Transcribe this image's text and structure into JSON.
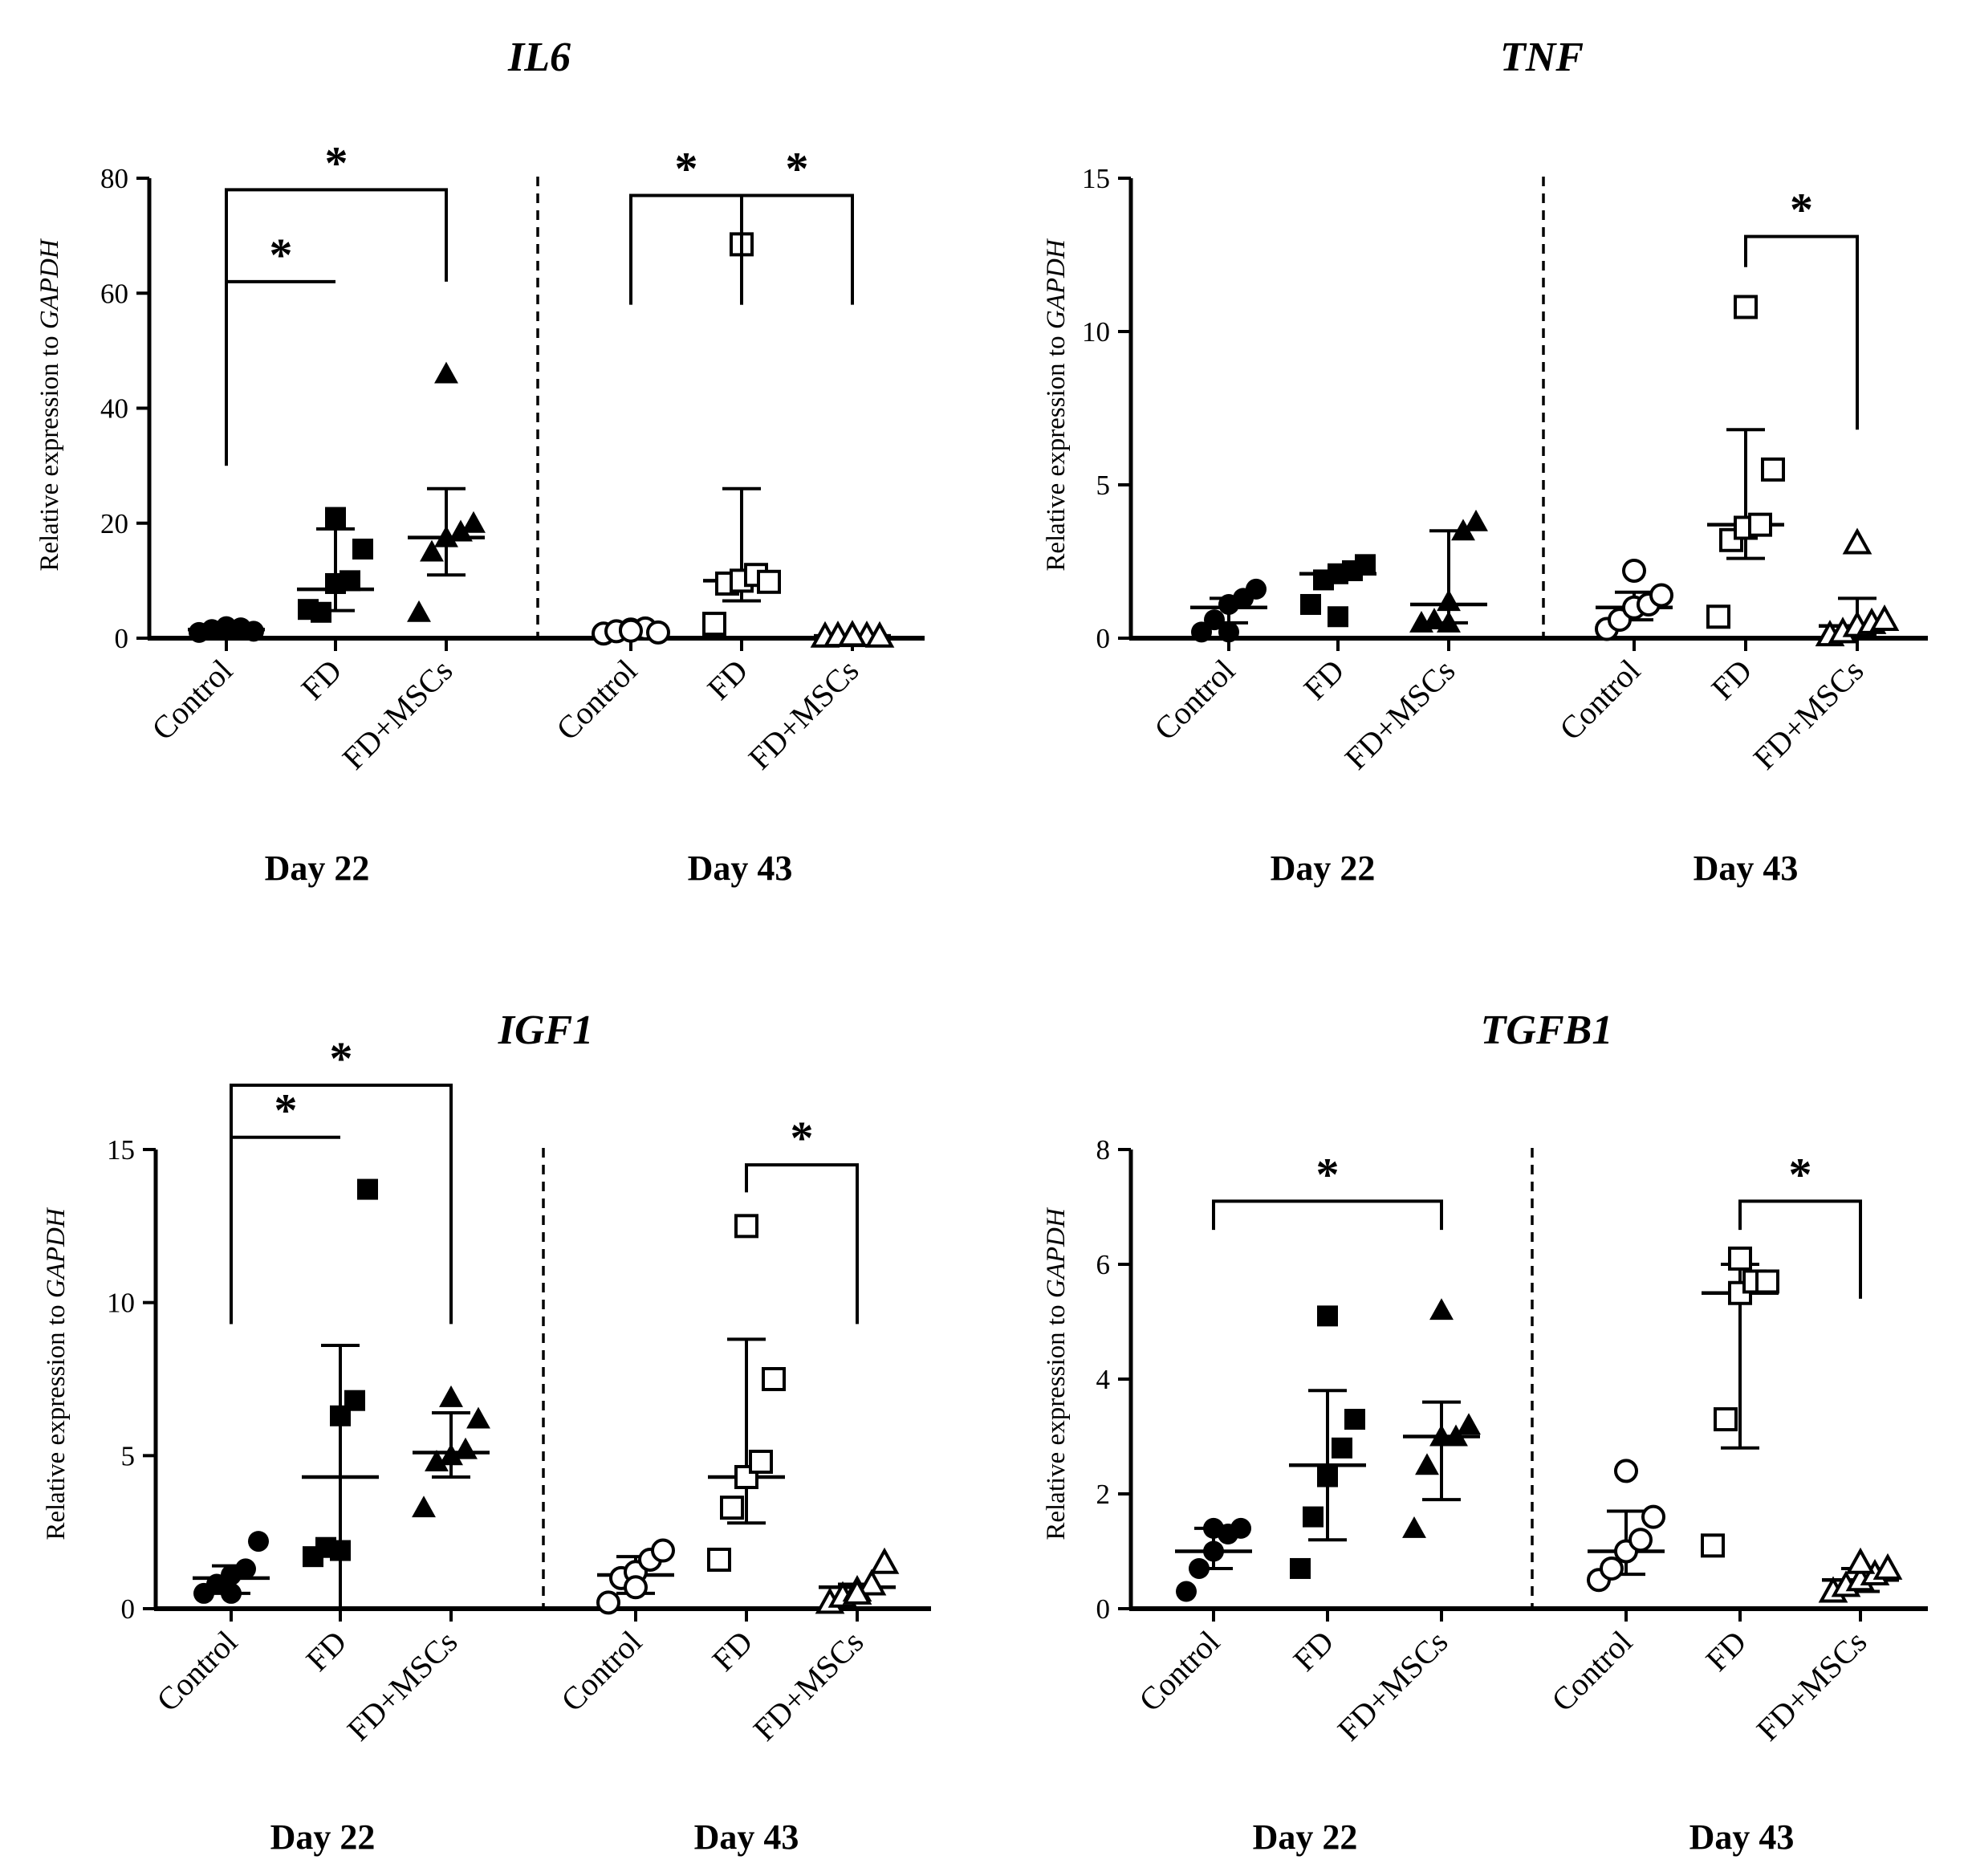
{
  "figure": {
    "ylabel_prefix": "Relative expression to ",
    "ylabel_gene": "GAPDH"
  },
  "chart_data": [
    {
      "type": "scatter",
      "title": "IL6",
      "ylim": [
        0,
        80
      ],
      "yticks": [
        0,
        20,
        40,
        60,
        80
      ],
      "groups": [
        {
          "label": "Day 22",
          "categories": [
            {
              "name": "Control",
              "marker": "circle",
              "filled": true,
              "points": [
                1.0,
                1.5,
                2.0,
                1.8,
                1.2,
                1.4
              ],
              "mean": 1.5,
              "error": [
                0.6,
                2.3
              ]
            },
            {
              "name": "FD",
              "marker": "square",
              "filled": true,
              "points": [
                5.0,
                4.5,
                9.5,
                10.0,
                15.5,
                21.0
              ],
              "mean": 8.5,
              "error": [
                4.8,
                19.0
              ]
            },
            {
              "name": "FD+MSCs",
              "marker": "triangle",
              "filled": true,
              "points": [
                4.5,
                15.0,
                17.5,
                18.5,
                20.0,
                46.0
              ],
              "mean": 17.5,
              "error": [
                11.0,
                26.0
              ]
            }
          ]
        },
        {
          "label": "Day 43",
          "categories": [
            {
              "name": "Control",
              "marker": "circle",
              "filled": false,
              "points": [
                0.8,
                1.2,
                1.5,
                1.7,
                1.0,
                1.3
              ],
              "mean": 1.2,
              "error": [
                0.6,
                1.7
              ]
            },
            {
              "name": "FD",
              "marker": "square",
              "filled": false,
              "points": [
                2.5,
                9.5,
                10.0,
                11.0,
                9.8,
                68.5
              ],
              "mean": 10.0,
              "error": [
                6.5,
                26.0
              ]
            },
            {
              "name": "FD+MSCs",
              "marker": "triangle",
              "filled": false,
              "points": [
                0.3,
                0.4,
                0.5,
                0.4,
                0.3,
                0.5
              ],
              "mean": 0.4,
              "error": [
                0.2,
                0.6
              ]
            }
          ]
        }
      ],
      "significance": [
        {
          "from": [
            0,
            0
          ],
          "to": [
            0,
            1
          ],
          "y": 62,
          "drop": [
            30,
            62
          ],
          "label": "*"
        },
        {
          "from": [
            0,
            0
          ],
          "to": [
            0,
            2
          ],
          "y": 78,
          "drop": [
            30,
            62
          ],
          "label": "*"
        },
        {
          "from": [
            1,
            1
          ],
          "to": [
            1,
            0
          ],
          "y": 77,
          "drop": [
            58,
            58
          ],
          "label": "*"
        },
        {
          "from": [
            1,
            1
          ],
          "to": [
            1,
            2
          ],
          "y": 77,
          "drop": [
            58,
            58
          ],
          "label": "*"
        }
      ]
    },
    {
      "type": "scatter",
      "title": "TNF",
      "ylim": [
        0,
        15
      ],
      "yticks": [
        0,
        5,
        10,
        15
      ],
      "groups": [
        {
          "label": "Day 22",
          "categories": [
            {
              "name": "Control",
              "marker": "circle",
              "filled": true,
              "points": [
                0.2,
                0.6,
                1.1,
                1.3,
                1.6,
                0.2
              ],
              "mean": 1.0,
              "error": [
                0.5,
                1.3
              ]
            },
            {
              "name": "FD",
              "marker": "square",
              "filled": true,
              "points": [
                1.1,
                1.9,
                2.1,
                2.2,
                2.4,
                0.7
              ],
              "mean": 2.1,
              "error": [
                2.1,
                2.1
              ]
            },
            {
              "name": "FD+MSCs",
              "marker": "triangle",
              "filled": true,
              "points": [
                0.5,
                0.6,
                1.2,
                3.5,
                3.8,
                0.5
              ],
              "mean": 1.1,
              "error": [
                0.5,
                3.5
              ]
            }
          ]
        },
        {
          "label": "Day 43",
          "categories": [
            {
              "name": "Control",
              "marker": "circle",
              "filled": false,
              "points": [
                0.3,
                0.6,
                1.0,
                1.1,
                1.4,
                2.2
              ],
              "mean": 1.0,
              "error": [
                0.6,
                1.5
              ]
            },
            {
              "name": "FD",
              "marker": "square",
              "filled": false,
              "points": [
                0.7,
                3.2,
                3.6,
                3.7,
                5.5,
                10.8
              ],
              "mean": 3.7,
              "error": [
                2.6,
                6.8
              ]
            },
            {
              "name": "FD+MSCs",
              "marker": "triangle",
              "filled": false,
              "points": [
                0.1,
                0.2,
                0.4,
                0.5,
                0.6,
                3.1
              ],
              "mean": 0.4,
              "error": [
                0.1,
                1.3
              ]
            }
          ]
        }
      ],
      "significance": [
        {
          "from": [
            1,
            1
          ],
          "to": [
            1,
            2
          ],
          "y": 13.1,
          "drop": [
            12.1,
            6.8
          ],
          "label": "*"
        }
      ]
    },
    {
      "type": "scatter",
      "title": "IGF1",
      "ylim": [
        0,
        15
      ],
      "yticks": [
        0,
        5,
        10,
        15
      ],
      "groups": [
        {
          "label": "Day 22",
          "categories": [
            {
              "name": "Control",
              "marker": "circle",
              "filled": true,
              "points": [
                0.5,
                0.8,
                1.1,
                1.3,
                2.2,
                0.5
              ],
              "mean": 1.0,
              "error": [
                0.5,
                1.4
              ]
            },
            {
              "name": "FD",
              "marker": "square",
              "filled": true,
              "points": [
                1.7,
                2.0,
                6.3,
                6.8,
                13.7,
                1.9
              ],
              "mean": 4.3,
              "error": [
                0,
                8.6
              ]
            },
            {
              "name": "FD+MSCs",
              "marker": "triangle",
              "filled": true,
              "points": [
                3.3,
                4.8,
                5.0,
                5.2,
                6.2,
                6.9
              ],
              "mean": 5.1,
              "error": [
                4.3,
                6.4
              ]
            }
          ]
        },
        {
          "label": "Day 43",
          "categories": [
            {
              "name": "Control",
              "marker": "circle",
              "filled": false,
              "points": [
                0.2,
                1.0,
                1.2,
                1.6,
                1.9,
                0.7
              ],
              "mean": 1.1,
              "error": [
                0.5,
                1.7
              ]
            },
            {
              "name": "FD",
              "marker": "square",
              "filled": false,
              "points": [
                1.6,
                3.3,
                4.3,
                4.8,
                7.5,
                12.5
              ],
              "mean": 4.3,
              "error": [
                2.8,
                8.8
              ]
            },
            {
              "name": "FD+MSCs",
              "marker": "triangle",
              "filled": false,
              "points": [
                0.2,
                0.4,
                0.6,
                0.8,
                1.5,
                0.5
              ],
              "mean": 0.7,
              "error": [
                0.5,
                0.8
              ]
            }
          ]
        }
      ],
      "significance": [
        {
          "from": [
            0,
            0
          ],
          "to": [
            0,
            1
          ],
          "y": 15.4,
          "drop": [
            9.3,
            15.4
          ],
          "label": "*"
        },
        {
          "from": [
            0,
            0
          ],
          "to": [
            0,
            2
          ],
          "y": 17.1,
          "drop": [
            9.3,
            9.3
          ],
          "label": "*"
        },
        {
          "from": [
            1,
            1
          ],
          "to": [
            1,
            2
          ],
          "y": 14.5,
          "drop": [
            13.6,
            9.3
          ],
          "label": "*"
        }
      ]
    },
    {
      "type": "scatter",
      "title": "TGFB1",
      "ylim": [
        0,
        8
      ],
      "yticks": [
        0,
        2,
        4,
        6,
        8
      ],
      "groups": [
        {
          "label": "Day 22",
          "categories": [
            {
              "name": "Control",
              "marker": "circle",
              "filled": true,
              "points": [
                0.3,
                0.7,
                1.0,
                1.3,
                1.4,
                1.4
              ],
              "mean": 1.0,
              "error": [
                0.7,
                1.4
              ]
            },
            {
              "name": "FD",
              "marker": "square",
              "filled": true,
              "points": [
                0.7,
                1.6,
                2.3,
                2.8,
                3.3,
                5.1
              ],
              "mean": 2.5,
              "error": [
                1.2,
                3.8
              ]
            },
            {
              "name": "FD+MSCs",
              "marker": "triangle",
              "filled": true,
              "points": [
                1.4,
                2.5,
                3.0,
                3.0,
                3.2,
                5.2
              ],
              "mean": 3.0,
              "error": [
                1.9,
                3.6
              ]
            }
          ]
        },
        {
          "label": "Day 43",
          "categories": [
            {
              "name": "Control",
              "marker": "circle",
              "filled": false,
              "points": [
                0.5,
                0.7,
                1.0,
                1.2,
                1.6,
                2.4
              ],
              "mean": 1.0,
              "error": [
                0.6,
                1.7
              ]
            },
            {
              "name": "FD",
              "marker": "square",
              "filled": false,
              "points": [
                1.1,
                3.3,
                5.5,
                5.7,
                5.7,
                6.1
              ],
              "mean": 5.5,
              "error": [
                2.8,
                6.0
              ]
            },
            {
              "name": "FD+MSCs",
              "marker": "triangle",
              "filled": false,
              "points": [
                0.3,
                0.4,
                0.5,
                0.6,
                0.7,
                0.8
              ],
              "mean": 0.5,
              "error": [
                0.3,
                0.7
              ]
            }
          ]
        }
      ],
      "significance": [
        {
          "from": [
            0,
            0
          ],
          "to": [
            0,
            2
          ],
          "y": 7.1,
          "drop": [
            6.6,
            6.6
          ],
          "label": "*"
        },
        {
          "from": [
            1,
            1
          ],
          "to": [
            1,
            2
          ],
          "y": 7.1,
          "drop": [
            6.6,
            5.4
          ],
          "label": "*"
        }
      ]
    }
  ]
}
